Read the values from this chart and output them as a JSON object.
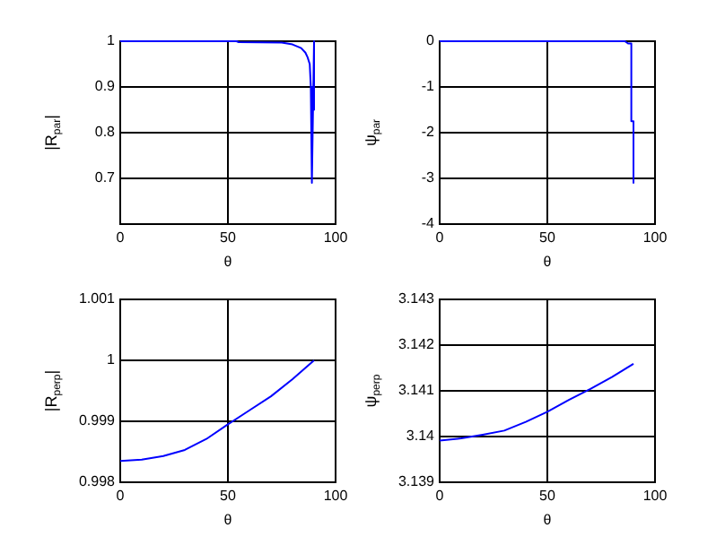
{
  "chart_data": [
    {
      "type": "line",
      "xlabel": "θ",
      "ylabel": "|R$_{par}$|",
      "color": "#0000ff",
      "grid": true,
      "xlim": [
        0,
        100
      ],
      "xticks": [
        0,
        50,
        100
      ],
      "ylim": [
        0.6,
        1
      ],
      "yticks": [
        0.7,
        0.8,
        0.9,
        1
      ],
      "x": [
        0,
        30,
        54,
        55,
        75,
        80,
        84,
        86,
        87,
        88,
        88.5,
        89,
        89,
        90,
        90
      ],
      "values": [
        1,
        1,
        1,
        0.998,
        0.997,
        0.993,
        0.985,
        0.975,
        0.965,
        0.95,
        0.9,
        0.9,
        0.69,
        1,
        0.85
      ]
    },
    {
      "type": "line",
      "xlabel": "θ",
      "ylabel": "ψ$_{par}$",
      "color": "#0000ff",
      "grid": true,
      "xlim": [
        0,
        100
      ],
      "xticks": [
        0,
        50,
        100
      ],
      "ylim": [
        -4,
        0
      ],
      "yticks": [
        -4,
        -3,
        -2,
        -1,
        0
      ],
      "x": [
        0,
        50,
        86,
        87.5,
        89,
        89,
        90,
        90
      ],
      "values": [
        0,
        0,
        0,
        -0.05,
        -0.05,
        -1.75,
        -1.75,
        -3.1
      ]
    },
    {
      "type": "line",
      "xlabel": "θ",
      "ylabel": "|R$_{perp}$|",
      "color": "#0000ff",
      "grid": true,
      "xlim": [
        0,
        100
      ],
      "xticks": [
        0,
        50,
        100
      ],
      "ylim": [
        0.998,
        1.001
      ],
      "yticks": [
        0.998,
        0.999,
        1,
        1.001
      ],
      "x": [
        0,
        10,
        20,
        30,
        40,
        50,
        60,
        70,
        80,
        90
      ],
      "values": [
        0.99835,
        0.99837,
        0.99843,
        0.99853,
        0.99871,
        0.99895,
        0.99918,
        0.99941,
        0.99969,
        1.0
      ]
    },
    {
      "type": "line",
      "xlabel": "θ",
      "ylabel": "ψ$_{perp}$",
      "color": "#0000ff",
      "grid": true,
      "xlim": [
        0,
        100
      ],
      "xticks": [
        0,
        50,
        100
      ],
      "ylim": [
        3.139,
        3.143
      ],
      "yticks": [
        3.139,
        3.14,
        3.141,
        3.142,
        3.143
      ],
      "x": [
        0,
        10,
        20,
        30,
        40,
        50,
        60,
        70,
        80,
        90
      ],
      "values": [
        3.13991,
        3.13996,
        3.14004,
        3.14013,
        3.14032,
        3.14054,
        3.1408,
        3.14104,
        3.1413,
        3.14159
      ]
    }
  ]
}
